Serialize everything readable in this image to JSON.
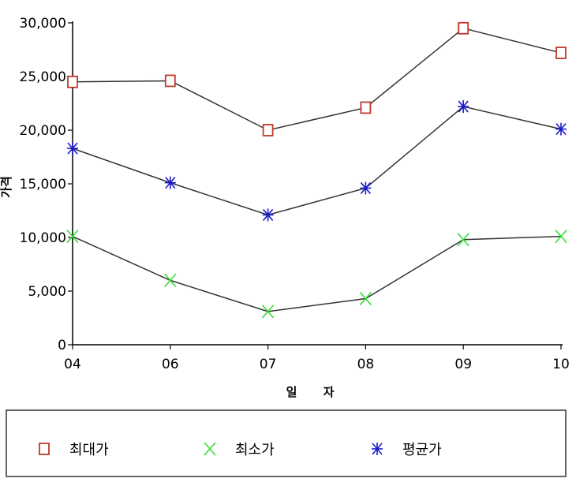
{
  "chart_data": {
    "type": "line",
    "categories": [
      "04",
      "06",
      "07",
      "08",
      "09",
      "10"
    ],
    "ylabel": "가격",
    "xlabel": "일 자",
    "ylim": [
      0,
      30000
    ],
    "yticks": [
      0,
      5000,
      10000,
      15000,
      20000,
      25000,
      30000
    ],
    "ytick_labels": [
      "0",
      "5,000",
      "10,000",
      "15,000",
      "20,000",
      "25,000",
      "30,000"
    ],
    "legend_position": "bottom",
    "series": [
      {
        "name": "최대가",
        "values": [
          24500,
          24600,
          20000,
          22100,
          29500,
          27200
        ],
        "marker": "square",
        "color": "#c0392b"
      },
      {
        "name": "최소가",
        "values": [
          10100,
          6000,
          3100,
          4300,
          9800,
          10100
        ],
        "marker": "x",
        "color": "#33dd33"
      },
      {
        "name": "평균가",
        "values": [
          18300,
          15100,
          12100,
          14600,
          22200,
          20100
        ],
        "marker": "asterisk",
        "color": "#1a1acc"
      }
    ],
    "line_color": "#333333"
  }
}
